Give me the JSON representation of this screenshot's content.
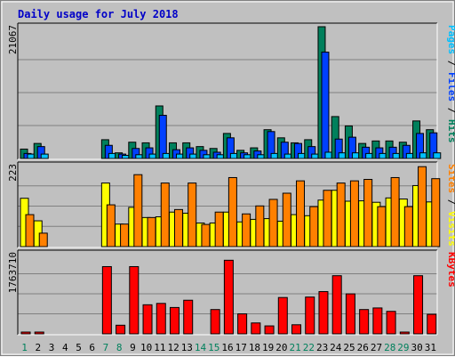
{
  "chart_data": {
    "type": "bar",
    "title": "Daily usage for July 2018",
    "categories": [
      "1",
      "2",
      "3",
      "4",
      "5",
      "6",
      "7",
      "8",
      "9",
      "10",
      "11",
      "12",
      "13",
      "14",
      "15",
      "16",
      "17",
      "18",
      "19",
      "20",
      "21",
      "22",
      "23",
      "24",
      "25",
      "26",
      "27",
      "28",
      "29",
      "30",
      "31"
    ],
    "weekend_days": [
      "1",
      "7",
      "8",
      "14",
      "15",
      "21",
      "22",
      "28",
      "29"
    ],
    "colors": {
      "hits": "#00805c",
      "files": "#0040ff",
      "pages": "#00c0ff",
      "visits": "#ffff00",
      "sites": "#ff8000",
      "kbytes": "#ff0000",
      "weekday_label": "#000000",
      "weekend_label": "#00805c",
      "title": "#0000c8"
    },
    "panels": [
      {
        "id": "hits",
        "ymax_label": "21067",
        "ymax": 21067,
        "legend": [
          {
            "text": "Pages",
            "color": "#00c0ff"
          },
          {
            "text": " / ",
            "color": "#000000"
          },
          {
            "text": "Files",
            "color": "#0040ff"
          },
          {
            "text": " / ",
            "color": "#000000"
          },
          {
            "text": "Hits",
            "color": "#00805c"
          }
        ],
        "series": [
          {
            "name": "Hits",
            "color": "#00805c",
            "values": [
              1500,
              2400,
              0,
              0,
              0,
              0,
              3000,
              900,
              2600,
              2500,
              8400,
              2500,
              2500,
              1900,
              1600,
              4000,
              1300,
              1700,
              4600,
              3300,
              2500,
              3000,
              21067,
              6700,
              5200,
              2400,
              2800,
              2800,
              2600,
              6000,
              4600
            ]
          },
          {
            "name": "Files",
            "color": "#0040ff",
            "values": [
              800,
              1900,
              0,
              0,
              0,
              0,
              2100,
              700,
              1600,
              1700,
              6900,
              1400,
              1700,
              1300,
              1000,
              3300,
              900,
              1200,
              4300,
              2600,
              2400,
              1900,
              17000,
              3100,
              3400,
              1800,
              1700,
              1800,
              2100,
              4000,
              4100
            ]
          },
          {
            "name": "Pages",
            "color": "#00c0ff",
            "values": [
              700,
              700,
              0,
              0,
              0,
              0,
              800,
              500,
              600,
              700,
              800,
              700,
              700,
              600,
              600,
              800,
              600,
              600,
              800,
              700,
              800,
              700,
              1000,
              900,
              900,
              800,
              800,
              800,
              800,
              900,
              900
            ]
          }
        ]
      },
      {
        "id": "visits",
        "ymax_label": "223",
        "ymax": 223,
        "legend": [
          {
            "text": "Sites",
            "color": "#ff8000"
          },
          {
            "text": " / ",
            "color": "#000000"
          },
          {
            "text": "Visits",
            "color": "#ffff00"
          }
        ],
        "series": [
          {
            "name": "Visits",
            "color": "#ffff00",
            "values": [
              133,
              71,
              0,
              0,
              0,
              0,
              175,
              62,
              108,
              80,
              82,
              95,
              92,
              65,
              65,
              95,
              68,
              75,
              77,
              70,
              88,
              85,
              128,
              155,
              125,
              126,
              122,
              134,
              131,
              168,
              123
            ]
          },
          {
            "name": "Sites",
            "color": "#ff8000",
            "values": [
              88,
              37,
              0,
              0,
              0,
              0,
              115,
              62,
              198,
              80,
              175,
              102,
              175,
              61,
              95,
              190,
              90,
              112,
              130,
              147,
              181,
              110,
              155,
              175,
              181,
              185,
              110,
              190,
              110,
              220,
              187
            ]
          }
        ]
      },
      {
        "id": "kbytes",
        "ymax_label": "1763710",
        "ymax": 1763710,
        "legend": [
          {
            "text": "KBytes",
            "color": "#ff0000"
          }
        ],
        "series": [
          {
            "name": "KBytes",
            "color": "#ff0000",
            "values": [
              20000,
              20000,
              0,
              0,
              0,
              0,
              1480000,
              190000,
              1480000,
              640000,
              670000,
              580000,
              740000,
              0,
              535000,
              1620000,
              440000,
              240000,
              175000,
              800000,
              200000,
              810000,
              930000,
              1280000,
              880000,
              535000,
              570000,
              495000,
              20000,
              1280000,
              430000
            ]
          }
        ]
      }
    ]
  }
}
